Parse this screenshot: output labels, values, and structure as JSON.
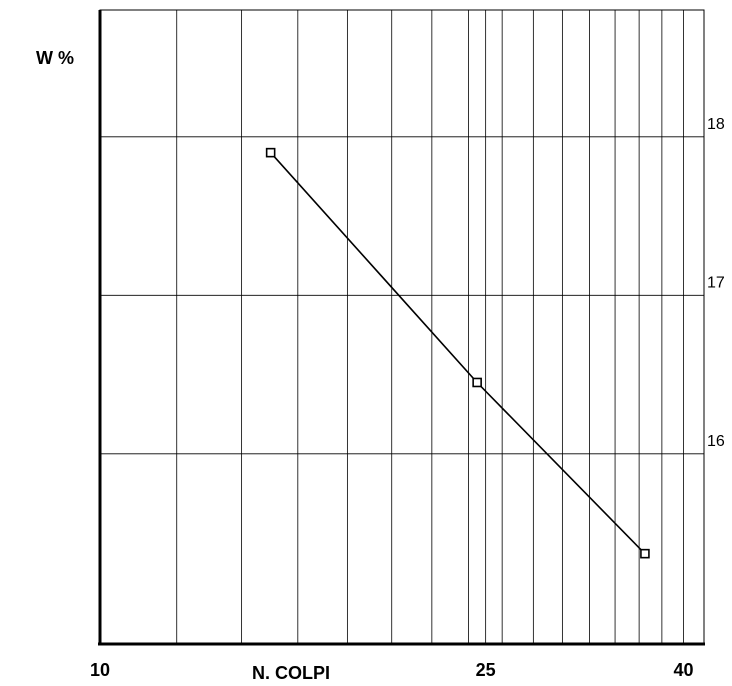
{
  "chart_data": {
    "type": "scatter",
    "title": "",
    "ylabel": "W %",
    "xlabel": "N. COLPI",
    "x_scale": "log",
    "xlim": [
      10,
      42
    ],
    "ylim": [
      14.8,
      18.8
    ],
    "grid": true,
    "x_ticks": [
      10,
      25,
      40
    ],
    "y_ticks": [
      16,
      17,
      18
    ],
    "x_gridlines": [
      10,
      12,
      14,
      16,
      18,
      20,
      22,
      24,
      25,
      26,
      28,
      30,
      32,
      34,
      36,
      38,
      40
    ],
    "y_gridlines": [
      16,
      17,
      18
    ],
    "series": [
      {
        "x": [
          15,
          24.5,
          36.5
        ],
        "y": [
          17.9,
          16.45,
          15.37
        ]
      }
    ]
  }
}
